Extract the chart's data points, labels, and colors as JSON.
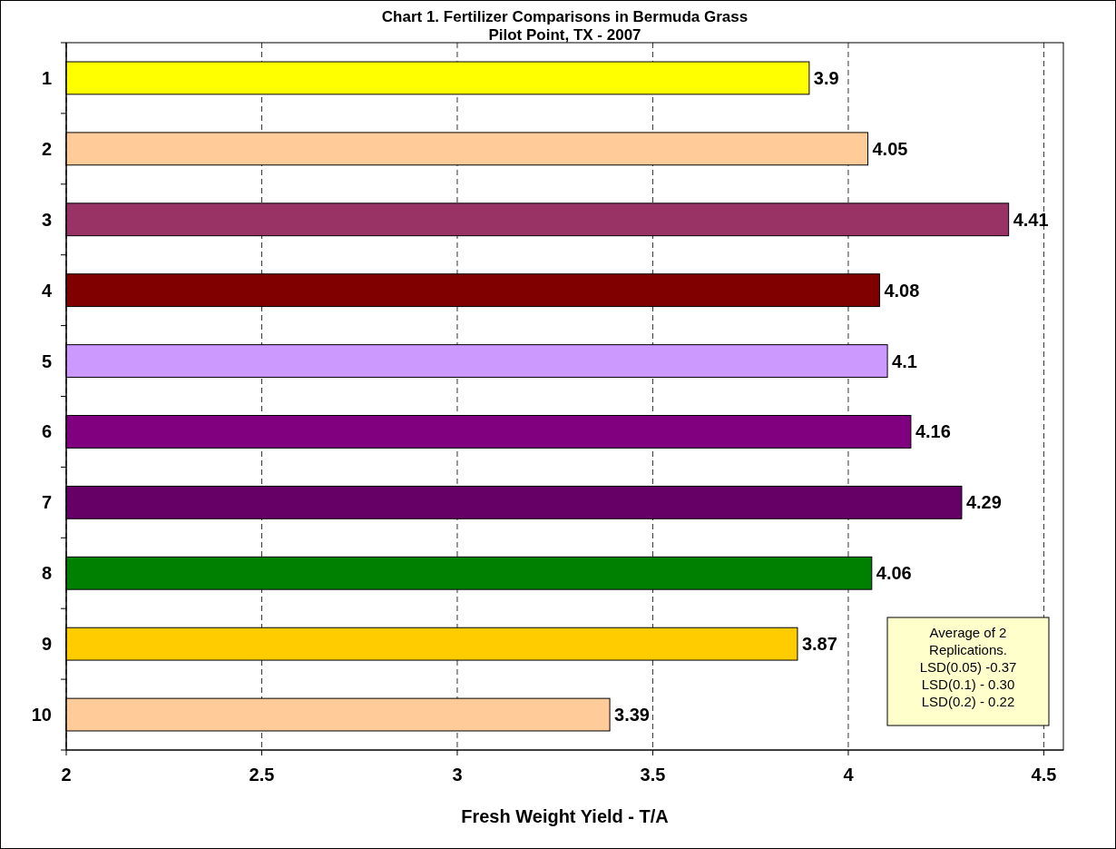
{
  "chart_data": {
    "type": "bar",
    "orientation": "horizontal",
    "title": "Chart 1. Fertilizer Comparisons in Bermuda Grass",
    "subtitle": "Pilot Point, TX - 2007",
    "xlabel": "Fresh Weight Yield - T/A",
    "categories": [
      "1",
      "2",
      "3",
      "4",
      "5",
      "6",
      "7",
      "8",
      "9",
      "10"
    ],
    "values": [
      3.9,
      4.05,
      4.41,
      4.08,
      4.1,
      4.16,
      4.29,
      4.06,
      3.87,
      3.39
    ],
    "colors": [
      "#ffff00",
      "#ffcc99",
      "#993366",
      "#800000",
      "#cc99ff",
      "#800080",
      "#660066",
      "#008000",
      "#ffcc00",
      "#ffcc99"
    ],
    "xlim": [
      2,
      4.55
    ],
    "xticks": [
      2,
      2.5,
      3,
      3.5,
      4,
      4.5
    ],
    "grid": "x",
    "data_labels": true,
    "annotations": [
      "Average of 2\nReplications.\nLSD(0.05) -0.37\nLSD(0.1) - 0.30\nLSD(0.2) - 0.22"
    ]
  }
}
